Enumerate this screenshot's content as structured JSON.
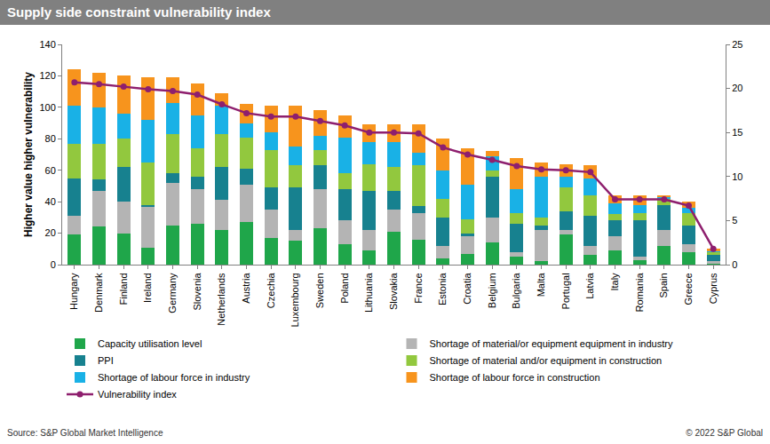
{
  "chart_data": {
    "type": "bar",
    "title": "Supply side constraint vulnerability index",
    "y_label": "Higher value higher vulnerability",
    "source": "Source: S&P Global Market Intelligence",
    "credit": "© 2022 S&P Global",
    "stacked": true,
    "grid": false,
    "legend": "bottom",
    "categories": [
      "Hungary",
      "Denmark",
      "Finland",
      "Ireland",
      "Germany",
      "Slovenia",
      "Netherlands",
      "Austria",
      "Czechia",
      "Luxembourg",
      "Sweden",
      "Poland",
      "Lithuania",
      "Slovakia",
      "France",
      "Estonia",
      "Croatia",
      "Belgium",
      "Bulgaria",
      "Malta",
      "Portugal",
      "Latvia",
      "Italy",
      "Romania",
      "Spain",
      "Greece",
      "Cyprus"
    ],
    "ylim": [
      0,
      140
    ],
    "yticks": [
      0,
      20,
      40,
      60,
      80,
      100,
      120,
      140
    ],
    "y2lim": [
      0,
      25
    ],
    "y2ticks": [
      0,
      5,
      10,
      15,
      20,
      25
    ],
    "series": [
      {
        "name": "Capacity utilisation level",
        "color": "#1fa64a",
        "type": "bar",
        "values": [
          19,
          24,
          20,
          11,
          25,
          26,
          22,
          27,
          17,
          15,
          23,
          13,
          9,
          21,
          16,
          4,
          7,
          14,
          5,
          2,
          19,
          6,
          9,
          3,
          12,
          8,
          1
        ]
      },
      {
        "name": "Shortage of material/or equipment equipment in industry",
        "color": "#b4b4b4",
        "type": "bar",
        "values": [
          12,
          23,
          20,
          26,
          27,
          22,
          19,
          24,
          18,
          7,
          25,
          15,
          13,
          14,
          17,
          8,
          11,
          16,
          3,
          20,
          3,
          6,
          9,
          2,
          10,
          5,
          1
        ]
      },
      {
        "name": "PPI",
        "color": "#17818f",
        "type": "bar",
        "values": [
          24,
          7,
          22,
          1,
          6,
          8,
          21,
          10,
          14,
          27,
          15,
          20,
          25,
          12,
          4,
          18,
          2,
          26,
          18,
          3,
          12,
          19,
          10,
          23,
          16,
          12,
          4
        ]
      },
      {
        "name": "Shortage of material and/or equipment in construction",
        "color": "#92c83e",
        "type": "bar",
        "values": [
          22,
          23,
          18,
          27,
          25,
          18,
          21,
          20,
          24,
          14,
          10,
          10,
          17,
          15,
          26,
          12,
          9,
          4,
          7,
          5,
          15,
          13,
          4,
          5,
          4,
          8,
          2
        ]
      },
      {
        "name": "Shortage of labour force in industry",
        "color": "#19b1e6",
        "type": "bar",
        "values": [
          24,
          23,
          16,
          27,
          20,
          21,
          18,
          9,
          11,
          12,
          9,
          23,
          14,
          16,
          8,
          18,
          22,
          9,
          15,
          26,
          7,
          11,
          7,
          5,
          1,
          3,
          1
        ]
      },
      {
        "name": "Shortage of labour force in construction",
        "color": "#f7941d",
        "type": "bar",
        "values": [
          23,
          22,
          24,
          27,
          16,
          20,
          8,
          12,
          17,
          26,
          16,
          14,
          11,
          11,
          18,
          20,
          23,
          3,
          20,
          9,
          8,
          8,
          5,
          6,
          1,
          4,
          1
        ]
      },
      {
        "name": "Vulnerability index",
        "color": "#8e1f6e",
        "type": "line",
        "marker": "circle",
        "axis": "y2",
        "values": [
          20.7,
          20.5,
          20.2,
          19.9,
          19.7,
          19.3,
          18.2,
          17.2,
          16.8,
          16.8,
          16.3,
          15.8,
          15.0,
          15.0,
          14.9,
          13.3,
          12.5,
          11.9,
          11.2,
          10.8,
          10.7,
          10.5,
          7.4,
          7.4,
          7.4,
          6.7,
          1.8
        ]
      }
    ]
  }
}
